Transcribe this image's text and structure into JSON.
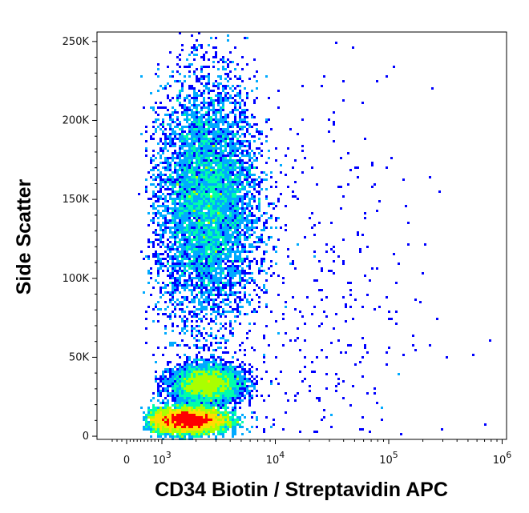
{
  "chart_data": {
    "type": "scatter",
    "subtype": "flow-cytometry-density-dot-plot",
    "title": "",
    "xlabel": "CD34 Biotin / Streptavidin APC",
    "ylabel": "Side Scatter",
    "x_scale": "biexponential",
    "y_scale": "linear",
    "xlim": [
      -300,
      1200000
    ],
    "ylim": [
      -2000,
      256000
    ],
    "grid": false,
    "legend": "none",
    "colormap": [
      "#0000ff",
      "#00aaff",
      "#00ffaa",
      "#aaff00",
      "#ffdd00",
      "#ff0000"
    ],
    "x_ticks": [
      {
        "value": 0,
        "base": "0",
        "exp": ""
      },
      {
        "value": 1000,
        "base": "10",
        "exp": "3"
      },
      {
        "value": 10000,
        "base": "10",
        "exp": "4"
      },
      {
        "value": 100000,
        "base": "10",
        "exp": "5"
      },
      {
        "value": 1000000,
        "base": "10",
        "exp": "6"
      }
    ],
    "y_ticks": [
      {
        "value": 0,
        "label": "0"
      },
      {
        "value": 50000,
        "label": "50K"
      },
      {
        "value": 100000,
        "label": "100K"
      },
      {
        "value": 150000,
        "label": "150K"
      },
      {
        "value": 200000,
        "label": "200K"
      },
      {
        "value": 250000,
        "label": "250K"
      }
    ],
    "populations": [
      {
        "x_center": 2500,
        "y_center": 148000,
        "x_spread_decades": 0.22,
        "y_spread": 38000,
        "relative_density": 1.0
      },
      {
        "x_center": 1700,
        "y_center": 10000,
        "x_spread_decades": 0.17,
        "y_spread": 4000,
        "relative_density": 1.6
      },
      {
        "x_center": 2500,
        "y_center": 33000,
        "x_spread_decades": 0.16,
        "y_spread": 6000,
        "relative_density": 0.45
      },
      {
        "x_center": 15000,
        "y_center": 80000,
        "x_spread_decades": 0.6,
        "y_spread": 70000,
        "relative_density": 0.05
      }
    ]
  }
}
